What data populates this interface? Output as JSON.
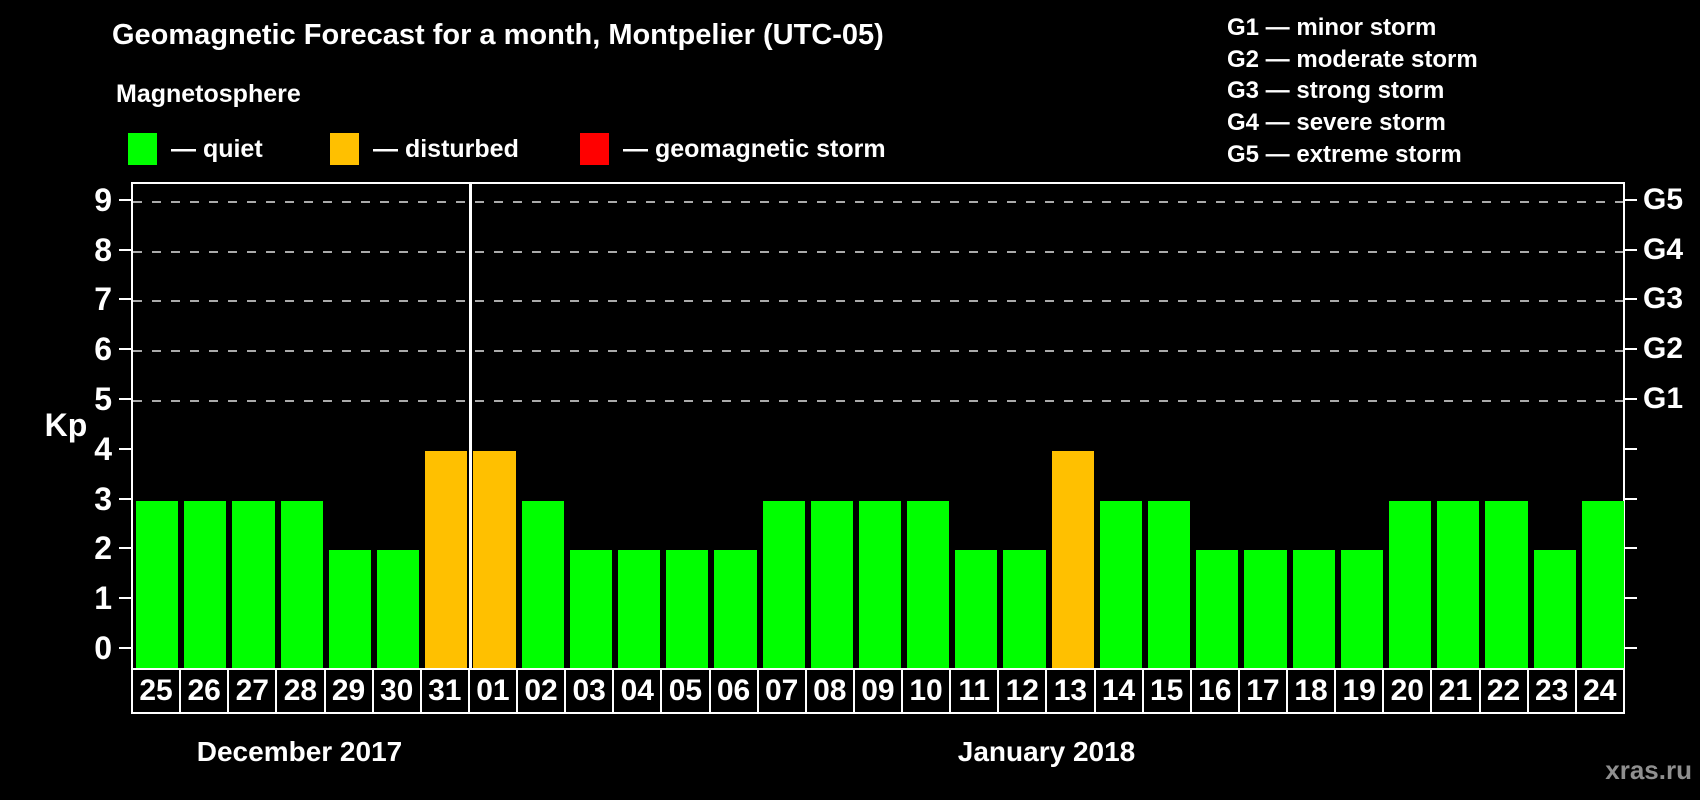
{
  "title": "Geomagnetic Forecast for a month, Montpelier (UTC-05)",
  "subtitle": "Magnetosphere",
  "legend": {
    "items": [
      {
        "label": "— quiet",
        "color": "#00ff00"
      },
      {
        "label": "— disturbed",
        "color": "#ffc000"
      },
      {
        "label": "— geomagnetic storm",
        "color": "#ff0000"
      }
    ]
  },
  "storm_legend": {
    "items": [
      "G1 — minor storm",
      "G2 — moderate storm",
      "G3 — strong storm",
      "G4 — severe storm",
      "G5 — extreme storm"
    ]
  },
  "watermark": "xras.ru",
  "chart_data": {
    "type": "bar",
    "title": "Geomagnetic Forecast for a month, Montpelier (UTC-05)",
    "ylabel": "Kp",
    "ylim": [
      0,
      9
    ],
    "yticks": [
      "0",
      "1",
      "2",
      "3",
      "4",
      "5",
      "6",
      "7",
      "8",
      "9"
    ],
    "grid_levels": [
      5,
      6,
      7,
      8,
      9
    ],
    "right_axis": [
      {
        "label": "G1",
        "kp": 5
      },
      {
        "label": "G2",
        "kp": 6
      },
      {
        "label": "G3",
        "kp": 7
      },
      {
        "label": "G4",
        "kp": 8
      },
      {
        "label": "G5",
        "kp": 9
      }
    ],
    "bar_colors": {
      "quiet": "#00ff00",
      "disturbed": "#ffc000",
      "storm": "#ff0000"
    },
    "months": [
      {
        "name": "December 2017",
        "days": [
          "25",
          "26",
          "27",
          "28",
          "29",
          "30",
          "31"
        ],
        "values": [
          3,
          3,
          3,
          3,
          2,
          2,
          4
        ],
        "status": [
          "quiet",
          "quiet",
          "quiet",
          "quiet",
          "quiet",
          "quiet",
          "disturbed"
        ]
      },
      {
        "name": "January 2018",
        "days": [
          "01",
          "02",
          "03",
          "04",
          "05",
          "06",
          "07",
          "08",
          "09",
          "10",
          "11",
          "12",
          "13",
          "14",
          "15",
          "16",
          "17",
          "18",
          "19",
          "20",
          "21",
          "22",
          "23",
          "24"
        ],
        "values": [
          4,
          3,
          2,
          2,
          2,
          2,
          3,
          3,
          3,
          3,
          2,
          2,
          4,
          3,
          3,
          2,
          2,
          2,
          2,
          3,
          3,
          3,
          2,
          3
        ],
        "status": [
          "disturbed",
          "quiet",
          "quiet",
          "quiet",
          "quiet",
          "quiet",
          "quiet",
          "quiet",
          "quiet",
          "quiet",
          "quiet",
          "quiet",
          "disturbed",
          "quiet",
          "quiet",
          "quiet",
          "quiet",
          "quiet",
          "quiet",
          "quiet",
          "quiet",
          "quiet",
          "quiet",
          "quiet"
        ]
      }
    ]
  }
}
